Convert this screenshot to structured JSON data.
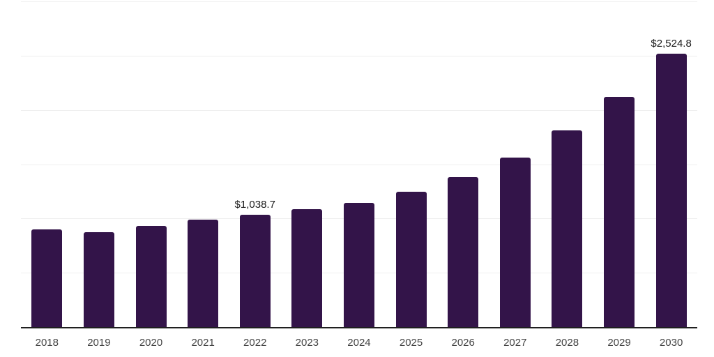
{
  "chart_data": {
    "type": "bar",
    "title": "",
    "xlabel": "",
    "ylabel": "",
    "categories": [
      "2018",
      "2019",
      "2020",
      "2021",
      "2022",
      "2023",
      "2024",
      "2025",
      "2026",
      "2027",
      "2028",
      "2029",
      "2030"
    ],
    "values": [
      905,
      878,
      940,
      998,
      1038.7,
      1090,
      1150,
      1255,
      1390,
      1568,
      1818,
      2128,
      2524.8
    ],
    "data_labels": [
      "",
      "",
      "",
      "",
      "$1,038.7",
      "",
      "",
      "",
      "",
      "",
      "",
      "",
      "$2,524.8"
    ],
    "ylim": [
      0,
      3000
    ],
    "gridline_values": [
      500,
      1000,
      1500,
      2000,
      2500,
      3000
    ],
    "grid": "horizontal",
    "legend": "none",
    "colors": {
      "bar": "#331449",
      "axis_line": "#1f1f1f",
      "gridline": "#efefef",
      "tick_label": "#444444",
      "data_label": "#1a1a1a",
      "background": "#ffffff"
    }
  }
}
